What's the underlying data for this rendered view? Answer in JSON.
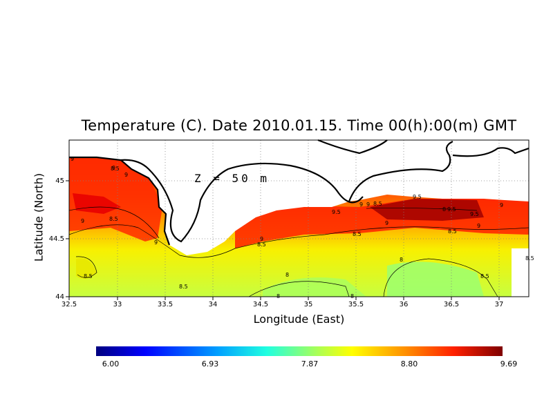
{
  "title": "Temperature (C). Date 2010.01.15. Time 00(h):00(m) GMT",
  "depth_label": "Z = 50 m",
  "axes": {
    "xlabel": "Longitude (East)",
    "ylabel": "Latitude (North)",
    "xlim": [
      32.5,
      37.3
    ],
    "ylim": [
      44.0,
      45.35
    ],
    "x_ticks": [
      "32.5",
      "33",
      "33.5",
      "34",
      "34.5",
      "35",
      "35.5",
      "36",
      "36.5",
      "37"
    ],
    "y_ticks": [
      "44",
      "44.5",
      "45"
    ],
    "grid": true
  },
  "colorbar": {
    "ticks": [
      "6.00",
      "6.93",
      "7.87",
      "8.80",
      "9.69"
    ],
    "min": 6.0,
    "max": 9.69,
    "colors": [
      "#00007f",
      "#0000ff",
      "#00a0ff",
      "#20ffe0",
      "#b0ff50",
      "#ffff00",
      "#ff9000",
      "#ff2000",
      "#7f0000"
    ]
  },
  "contour_labels": [
    "9",
    "9",
    "9",
    "8.5",
    "9",
    "8.5",
    "8.5",
    "9",
    "8.5",
    "9",
    "8.5",
    "8.5",
    "8",
    "8",
    "8",
    "9.5",
    "9",
    "9",
    "8.5",
    "9.5",
    "9.5",
    "9.5",
    "9",
    "8.5",
    "9",
    "8.5",
    "8.5",
    "8",
    "9",
    "8"
  ]
}
